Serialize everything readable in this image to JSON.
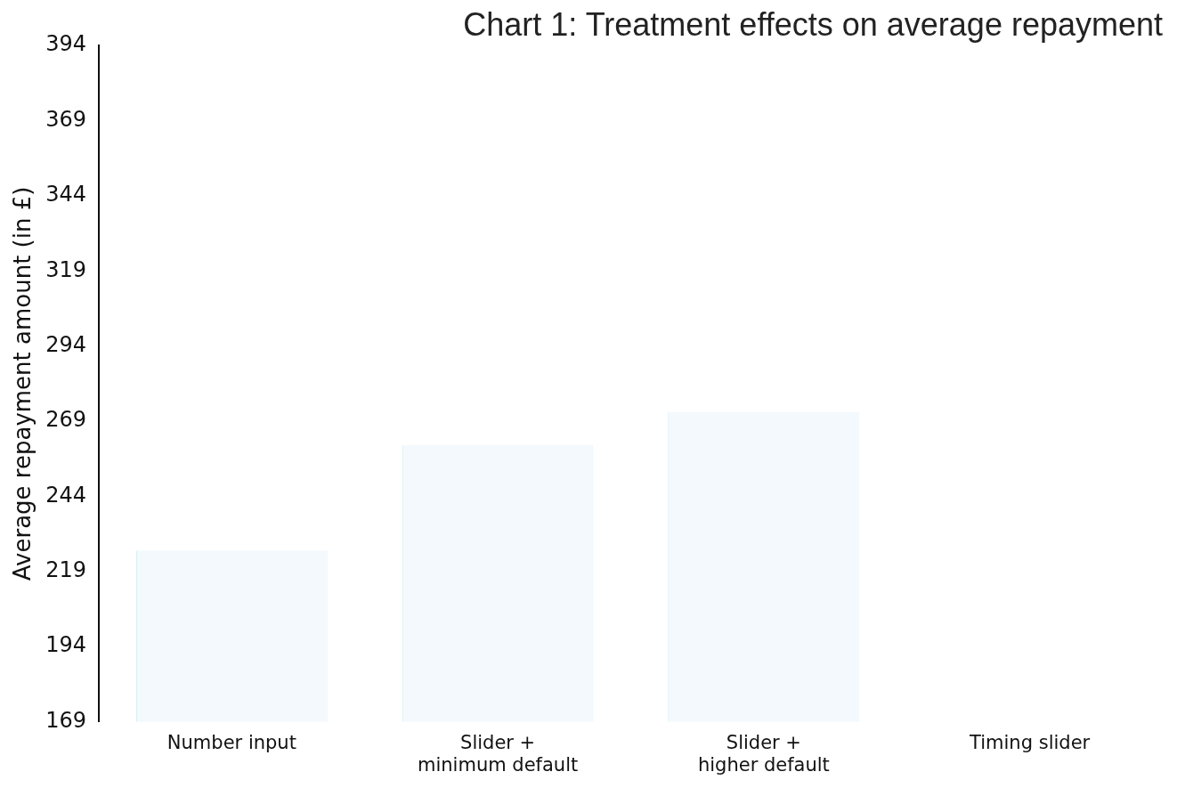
{
  "chart_data": {
    "type": "bar",
    "title": "Chart 1: Treatment effects on average repayment",
    "ylabel": "Average repayment amount (in £)",
    "categories": [
      "Number input",
      "Slider +\nminimum default",
      "Slider +\nhigher default",
      "Timing slider"
    ],
    "values": [
      226,
      261,
      272,
      null
    ],
    "color": "#f3f9fc",
    "ylim": [
      169,
      394
    ],
    "yticks": [
      169,
      194,
      219,
      244,
      269,
      294,
      319,
      344,
      369,
      394
    ],
    "grid": false,
    "legend": false
  }
}
